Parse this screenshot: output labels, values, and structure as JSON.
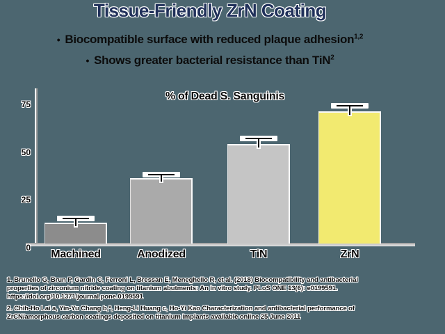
{
  "slide": {
    "title": "Tissue-Friendly ZrN Coating",
    "bullets": [
      {
        "marker": "•",
        "text": "Biocompatible surface with reduced plaque adhesion",
        "superscript": "1,2"
      },
      {
        "marker": "•",
        "text": "Shows greater bacterial resistance than TiN",
        "superscript": "2"
      }
    ]
  },
  "chart_data": {
    "type": "bar",
    "title": "% of Dead S. Sanguinis",
    "categories": [
      "Machined",
      "Anodized",
      "TiN",
      "ZrN"
    ],
    "values": [
      11,
      34,
      52,
      69
    ],
    "error_plus": [
      2,
      2,
      3,
      3
    ],
    "y_ticks": [
      0,
      25,
      50,
      75
    ],
    "ylim": [
      0,
      81
    ],
    "xlabel": "",
    "ylabel": "",
    "grid": false,
    "legend": false,
    "bar_colors": [
      "#8c8c8c",
      "#aaaaaa",
      "#c5c5c5",
      "#f2ea70"
    ],
    "error_bar_color": "#000000",
    "error_bar_highlight": "#ffffff"
  },
  "references": {
    "ref1_lines": [
      "1. Brunello G, Brun P, Gardin C, Ferroni L, Bressan E, Meneghello R, et al. (2018) Biocompatibility and antibacterial",
      "properties of zirconium nitride coating on titanium abutments: An in vitro study. PLoS ONE 13(6): e0199591.",
      "https://doi.org/10.1371/journal.pone.0199591"
    ],
    "ref2_lines": [
      "2. Chih-Ho Lai a, Yin-Yu Chang b,*, Heng-Li Huang c, Ho-Yi Kao Characterization and antibacterial performance of",
      "ZrCN/amorphous carbon coatings deposited on titanium implants available online 25 June 2011"
    ]
  },
  "colors": {
    "background": "#4c6670",
    "title_text": "#20305a",
    "body_text": "#0c0c0c",
    "axis_line": "#9e9e9e",
    "baseline": "#cccccc",
    "text_outline": "#ffffff"
  }
}
